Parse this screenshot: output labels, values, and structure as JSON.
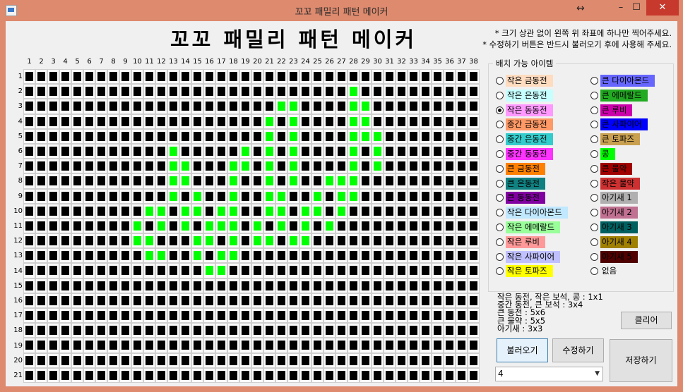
{
  "window": {
    "title": "꼬꼬 패밀리 패턴 메이커",
    "resize_glyph": "↔",
    "minimize_glyph": "–",
    "maximize_glyph": "☐",
    "close_glyph": "✕"
  },
  "header": {
    "title": "꼬꼬 패밀리 패턴 메이커",
    "note1": "* 크기 상관 없이 왼쪽 위 좌표에 하나만 찍어주세요.",
    "note2": "* 수정하기 버튼은 반드시 불러오기 후에 사용해 주세요."
  },
  "grid": {
    "columns": [
      "1",
      "2",
      "3",
      "4",
      "5",
      "6",
      "7",
      "8",
      "9",
      "10",
      "11",
      "12",
      "13",
      "14",
      "15",
      "16",
      "17",
      "18",
      "19",
      "20",
      "21",
      "22",
      "23",
      "24",
      "25",
      "26",
      "27",
      "28",
      "29",
      "30",
      "31",
      "32",
      "33",
      "34",
      "35",
      "36",
      "37",
      "38"
    ],
    "rows": [
      "1",
      "2",
      "3",
      "4",
      "5",
      "6",
      "7",
      "8",
      "9",
      "10",
      "11",
      "12",
      "13",
      "14",
      "15",
      "16",
      "17",
      "18",
      "19",
      "20",
      "21"
    ],
    "filled": {
      "2": [
        28
      ],
      "3": [
        22,
        23,
        28,
        29
      ],
      "4": [
        21,
        23,
        28,
        29
      ],
      "5": [
        21,
        23,
        28,
        29,
        30
      ],
      "6": [
        13,
        19,
        21,
        23,
        28,
        30
      ],
      "7": [
        13,
        14,
        18,
        19,
        21,
        23,
        28,
        30
      ],
      "8": [
        13,
        14,
        18,
        21,
        23,
        26,
        27,
        28
      ],
      "9": [
        13,
        15,
        18,
        21,
        22,
        25,
        27,
        28
      ],
      "10": [
        11,
        12,
        14,
        15,
        17,
        18,
        21,
        22,
        24,
        25,
        27
      ],
      "11": [
        10,
        12,
        14,
        16,
        17,
        18,
        20,
        22,
        24,
        26
      ],
      "12": [
        10,
        11,
        15,
        16,
        18,
        20,
        21,
        23,
        24
      ],
      "13": [
        11,
        12,
        15,
        17,
        18
      ],
      "14": [
        16,
        17
      ]
    },
    "on_color": "#00ff00",
    "off_color": "#000000"
  },
  "items_group": {
    "title": "배치 가능 아이템",
    "selected": "작은 동동전",
    "left": [
      {
        "label": "작은 금동전",
        "bg": "#ffdcc0",
        "fg": "#000000"
      },
      {
        "label": "작은 은동전",
        "bg": "#c6ffff",
        "fg": "#000000"
      },
      {
        "label": "작은 동동전",
        "bg": "#ff99ff",
        "fg": "#000000"
      },
      {
        "label": "중간 금동전",
        "bg": "#ff9966",
        "fg": "#000000"
      },
      {
        "label": "중간 은동전",
        "bg": "#33cccc",
        "fg": "#000000"
      },
      {
        "label": "중간 동동전",
        "bg": "#ff33ff",
        "fg": "#000000"
      },
      {
        "label": "큰 금동전",
        "bg": "#ff8000",
        "fg": "#000000"
      },
      {
        "label": "큰 은동전",
        "bg": "#108080",
        "fg": "#000000"
      },
      {
        "label": "큰 동동전",
        "bg": "#8000a0",
        "fg": "#000000"
      },
      {
        "label": "작은 다이아몬드",
        "bg": "#c0e8ff",
        "fg": "#000000"
      },
      {
        "label": "작은 에메랄드",
        "bg": "#99ff99",
        "fg": "#000000"
      },
      {
        "label": "작은 루비",
        "bg": "#ff9999",
        "fg": "#000000"
      },
      {
        "label": "작은 사파이어",
        "bg": "#c0c0ff",
        "fg": "#000000"
      },
      {
        "label": "작은 토파즈",
        "bg": "#ffff00",
        "fg": "#000000"
      }
    ],
    "right": [
      {
        "label": "큰 다이아몬드",
        "bg": "#6666ff",
        "fg": "#000000"
      },
      {
        "label": "큰 에메랄드",
        "bg": "#22aa22",
        "fg": "#000000"
      },
      {
        "label": "큰 루비",
        "bg": "#cc00aa",
        "fg": "#000000"
      },
      {
        "label": "큰 사파이어",
        "bg": "#0000ff",
        "fg": "#000000"
      },
      {
        "label": "큰 토파즈",
        "bg": "#c8a050",
        "fg": "#000000"
      },
      {
        "label": "콩",
        "bg": "#00ff00",
        "fg": "#000000"
      },
      {
        "label": "큰 물약",
        "bg": "#a00000",
        "fg": "#000000"
      },
      {
        "label": "작은 물약",
        "bg": "#cc3030",
        "fg": "#000000"
      },
      {
        "label": "아기새 1",
        "bg": "#b0b0b0",
        "fg": "#000000"
      },
      {
        "label": "아기새 2",
        "bg": "#c07090",
        "fg": "#000000"
      },
      {
        "label": "아기새 3",
        "bg": "#006060",
        "fg": "#000000"
      },
      {
        "label": "아기새 4",
        "bg": "#a08000",
        "fg": "#000000"
      },
      {
        "label": "아기새 5",
        "bg": "#500000",
        "fg": "#000000"
      },
      {
        "label": "없음",
        "bg": "",
        "fg": "#000000"
      }
    ]
  },
  "size_info": [
    "작은 동전, 작은 보석, 콩 : 1x1",
    "중간 동전, 큰 보석 : 3x4",
    "큰 동전 : 5x6",
    "큰 물약 : 5x5",
    "아기새 : 3x3"
  ],
  "buttons": {
    "clear": "클리어",
    "load": "불러오기",
    "edit": "수정하기",
    "save": "저장하기"
  },
  "select": {
    "value": "4"
  }
}
